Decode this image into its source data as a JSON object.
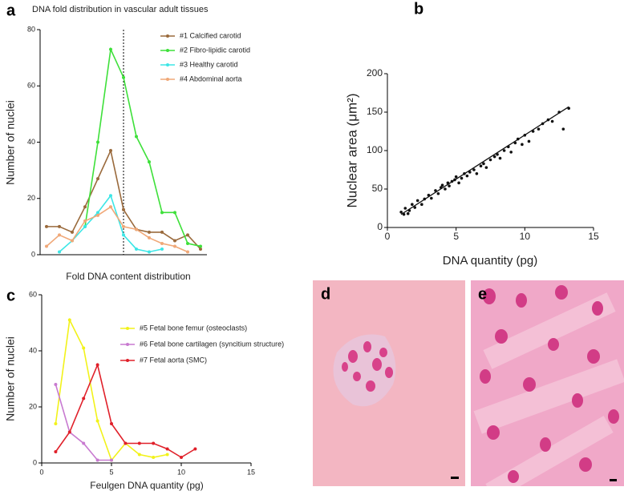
{
  "chart_data": [
    {
      "type": "line",
      "panel_label": "a",
      "title": "DNA fold distribution in vascular adult tissues",
      "x_label": "Fold DNA content distribution",
      "y_label": "Number of nuclei",
      "categories": [
        null,
        null,
        null,
        null,
        null,
        null,
        null,
        null,
        null,
        null,
        null,
        null,
        null
      ],
      "ylim": [
        0,
        80
      ],
      "yticks": [
        0,
        20,
        40,
        60,
        80
      ],
      "legend": "upper right",
      "series": [
        {
          "name": "#1 Calcified carotid",
          "color": "#9a6a3c",
          "values": [
            10,
            10,
            8,
            17,
            27,
            37,
            16,
            9,
            8,
            8,
            5,
            7,
            2
          ]
        },
        {
          "name": "#2 Fibro-lipidic carotid",
          "color": "#3ee03a",
          "values": [
            null,
            null,
            null,
            10,
            40,
            73,
            63,
            42,
            33,
            15,
            15,
            4,
            3
          ]
        },
        {
          "name": "#3 Healthy carotid",
          "color": "#3de6e6",
          "values": [
            null,
            1,
            5,
            10,
            15,
            21,
            7,
            2,
            1,
            2,
            null,
            null,
            null
          ]
        },
        {
          "name": "#4 Abdominal aorta",
          "color": "#f0a878",
          "values": [
            3,
            7,
            5,
            12,
            14,
            17,
            10,
            9,
            6,
            4,
            3,
            1,
            null
          ]
        }
      ]
    },
    {
      "type": "scatter",
      "panel_label": "b",
      "x_label": "DNA quantity (pg)",
      "y_label": "Nuclear area (μm²)",
      "xlim": [
        0,
        15
      ],
      "xticks": [
        0,
        5,
        10,
        15
      ],
      "ylim": [
        0,
        200
      ],
      "yticks": [
        0,
        50,
        100,
        150,
        200
      ],
      "color": "#111111",
      "x": [
        1.0,
        1.2,
        1.3,
        1.5,
        1.6,
        1.8,
        2.0,
        2.2,
        2.5,
        2.7,
        3.0,
        3.2,
        3.5,
        3.7,
        3.9,
        4.0,
        4.2,
        4.4,
        4.5,
        4.7,
        4.9,
        5.0,
        5.2,
        5.4,
        5.6,
        5.8,
        6.0,
        6.3,
        6.5,
        6.8,
        7.0,
        7.2,
        7.5,
        7.8,
        8.0,
        8.2,
        8.5,
        8.8,
        9.0,
        9.3,
        9.5,
        9.8,
        10.0,
        10.3,
        10.6,
        11.0,
        11.3,
        11.7,
        12.0,
        12.5,
        12.8,
        13.2
      ],
      "values": [
        20,
        17,
        25,
        18,
        22,
        30,
        26,
        35,
        30,
        37,
        42,
        38,
        48,
        44,
        52,
        55,
        50,
        58,
        54,
        60,
        62,
        66,
        58,
        64,
        70,
        67,
        72,
        75,
        70,
        80,
        83,
        78,
        88,
        92,
        95,
        90,
        100,
        105,
        98,
        110,
        115,
        108,
        120,
        112,
        125,
        128,
        135,
        140,
        138,
        150,
        128,
        155
      ],
      "trendline": {
        "x": [
          1.0,
          13.2
        ],
        "y": [
          17,
          157
        ]
      }
    },
    {
      "type": "line",
      "panel_label": "c",
      "x_label": "Feulgen DNA quantity (pg)",
      "y_label": "Number of nuclei",
      "xlim": [
        0,
        15
      ],
      "xticks": [
        0,
        5,
        10,
        15
      ],
      "ylim": [
        0,
        60
      ],
      "yticks": [
        0,
        20,
        40,
        60
      ],
      "legend": "upper right",
      "series": [
        {
          "name": "#5 Fetal bone femur (osteoclasts)",
          "color": "#f2f21a",
          "x": [
            1,
            2,
            3,
            4,
            5,
            6,
            7,
            8,
            9
          ],
          "values": [
            14,
            51,
            41,
            15,
            1,
            7,
            3,
            2,
            3
          ]
        },
        {
          "name": "#6 Fetal bone cartilagen (syncitium structure)",
          "color": "#c87ad0",
          "x": [
            1,
            2,
            3,
            4,
            5
          ],
          "values": [
            28,
            11,
            7,
            1,
            1
          ]
        },
        {
          "name": "#7 Fetal aorta (SMC)",
          "color": "#e0202a",
          "x": [
            1,
            2,
            3,
            4,
            5,
            6,
            7,
            8,
            9,
            10,
            11
          ],
          "values": [
            4,
            11,
            23,
            35,
            14,
            7,
            7,
            7,
            5,
            2,
            5
          ]
        }
      ]
    }
  ],
  "images": [
    {
      "panel_label": "d"
    },
    {
      "panel_label": "e"
    }
  ]
}
